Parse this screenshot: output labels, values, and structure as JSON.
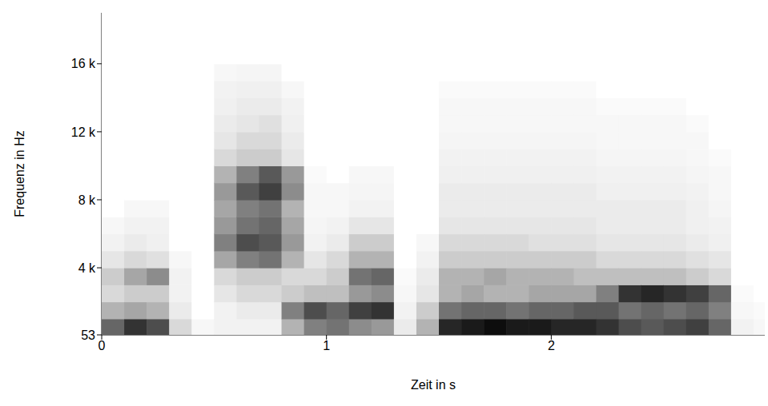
{
  "chart_data": {
    "type": "heatmap",
    "x_label": "Zeit in s",
    "y_label": "Frequenz in Hz",
    "color": "#000000",
    "x": [
      0.05,
      0.15,
      0.25,
      0.35,
      0.45,
      0.55,
      0.65,
      0.75,
      0.85,
      0.95,
      1.05,
      1.15,
      1.25,
      1.35,
      1.45,
      1.55,
      1.65,
      1.75,
      1.85,
      1.95,
      2.05,
      2.15,
      2.25,
      2.35,
      2.45,
      2.55,
      2.65,
      2.75,
      2.85,
      2.95
    ],
    "y": [
      500,
      1500,
      2500,
      3500,
      4500,
      5500,
      6500,
      7500,
      8500,
      9500,
      10500,
      11500,
      12500,
      13500,
      14500,
      15500,
      16500,
      17500,
      18500
    ],
    "z": [
      [
        0.6,
        0.3,
        0.15,
        0.2,
        0.1,
        0.05,
        0.03,
        0,
        0,
        0,
        0,
        0,
        0,
        0,
        0,
        0,
        0,
        0,
        0
      ],
      [
        0.8,
        0.35,
        0.2,
        0.35,
        0.15,
        0.08,
        0.05,
        0.03,
        0,
        0,
        0,
        0,
        0,
        0,
        0,
        0,
        0,
        0,
        0
      ],
      [
        0.7,
        0.3,
        0.2,
        0.45,
        0.12,
        0.06,
        0.05,
        0.03,
        0,
        0,
        0,
        0,
        0,
        0,
        0,
        0,
        0,
        0,
        0
      ],
      [
        0.15,
        0.08,
        0.05,
        0.05,
        0.03,
        0,
        0,
        0,
        0,
        0,
        0,
        0,
        0,
        0,
        0,
        0,
        0,
        0,
        0
      ],
      [
        0.03,
        0,
        0,
        0,
        0,
        0,
        0,
        0,
        0,
        0,
        0,
        0,
        0,
        0,
        0,
        0,
        0,
        0,
        0
      ],
      [
        0.05,
        0.05,
        0.1,
        0.15,
        0.35,
        0.5,
        0.4,
        0.35,
        0.4,
        0.3,
        0.15,
        0.1,
        0.08,
        0.06,
        0.05,
        0.03,
        0,
        0,
        0
      ],
      [
        0.05,
        0.08,
        0.15,
        0.2,
        0.5,
        0.7,
        0.55,
        0.5,
        0.65,
        0.5,
        0.2,
        0.15,
        0.1,
        0.08,
        0.06,
        0.04,
        0,
        0,
        0
      ],
      [
        0.05,
        0.08,
        0.15,
        0.2,
        0.55,
        0.65,
        0.6,
        0.55,
        0.75,
        0.65,
        0.2,
        0.15,
        0.12,
        0.08,
        0.06,
        0.04,
        0,
        0,
        0
      ],
      [
        0.3,
        0.5,
        0.2,
        0.15,
        0.3,
        0.4,
        0.35,
        0.3,
        0.45,
        0.4,
        0.1,
        0.08,
        0.06,
        0.05,
        0.03,
        0,
        0,
        0,
        0
      ],
      [
        0.5,
        0.7,
        0.25,
        0.15,
        0.1,
        0.05,
        0.04,
        0.03,
        0.03,
        0.02,
        0,
        0,
        0,
        0,
        0,
        0,
        0,
        0,
        0
      ],
      [
        0.55,
        0.6,
        0.25,
        0.2,
        0.15,
        0.08,
        0.05,
        0.03,
        0.03,
        0,
        0,
        0,
        0,
        0,
        0,
        0,
        0,
        0,
        0
      ],
      [
        0.45,
        0.75,
        0.4,
        0.55,
        0.3,
        0.2,
        0.1,
        0.05,
        0.04,
        0.03,
        0,
        0,
        0,
        0,
        0,
        0,
        0,
        0,
        0
      ],
      [
        0.4,
        0.8,
        0.45,
        0.6,
        0.3,
        0.2,
        0.1,
        0.05,
        0.04,
        0.03,
        0,
        0,
        0,
        0,
        0,
        0,
        0,
        0,
        0
      ],
      [
        0.08,
        0.05,
        0.03,
        0.02,
        0,
        0,
        0,
        0,
        0,
        0,
        0,
        0,
        0,
        0,
        0,
        0,
        0,
        0,
        0
      ],
      [
        0.3,
        0.2,
        0.1,
        0.08,
        0.05,
        0.03,
        0,
        0,
        0,
        0,
        0,
        0,
        0,
        0,
        0,
        0,
        0,
        0,
        0
      ],
      [
        0.85,
        0.55,
        0.3,
        0.3,
        0.2,
        0.15,
        0.1,
        0.08,
        0.08,
        0.06,
        0.05,
        0.04,
        0.03,
        0.03,
        0.02,
        0,
        0,
        0,
        0
      ],
      [
        0.9,
        0.6,
        0.35,
        0.3,
        0.2,
        0.15,
        0.1,
        0.08,
        0.08,
        0.06,
        0.05,
        0.04,
        0.03,
        0.03,
        0.02,
        0,
        0,
        0,
        0
      ],
      [
        0.95,
        0.6,
        0.3,
        0.35,
        0.2,
        0.15,
        0.1,
        0.08,
        0.08,
        0.06,
        0.05,
        0.04,
        0.03,
        0.03,
        0.02,
        0,
        0,
        0,
        0
      ],
      [
        0.9,
        0.55,
        0.3,
        0.3,
        0.2,
        0.15,
        0.1,
        0.08,
        0.08,
        0.06,
        0.05,
        0.04,
        0.03,
        0.03,
        0.02,
        0,
        0,
        0,
        0
      ],
      [
        0.9,
        0.6,
        0.35,
        0.3,
        0.2,
        0.12,
        0.1,
        0.08,
        0.08,
        0.06,
        0.05,
        0.04,
        0.03,
        0.03,
        0.02,
        0,
        0,
        0,
        0
      ],
      [
        0.85,
        0.6,
        0.35,
        0.3,
        0.2,
        0.12,
        0.1,
        0.08,
        0.08,
        0.06,
        0.05,
        0.04,
        0.03,
        0.03,
        0.02,
        0,
        0,
        0,
        0
      ],
      [
        0.85,
        0.65,
        0.35,
        0.25,
        0.2,
        0.12,
        0.1,
        0.08,
        0.08,
        0.06,
        0.05,
        0.04,
        0.03,
        0.03,
        0.02,
        0,
        0,
        0,
        0
      ],
      [
        0.8,
        0.65,
        0.5,
        0.25,
        0.15,
        0.1,
        0.08,
        0.08,
        0.06,
        0.05,
        0.04,
        0.03,
        0.03,
        0.02,
        0,
        0,
        0,
        0,
        0
      ],
      [
        0.7,
        0.55,
        0.8,
        0.25,
        0.15,
        0.1,
        0.08,
        0.08,
        0.06,
        0.05,
        0.04,
        0.03,
        0.03,
        0.02,
        0,
        0,
        0,
        0,
        0
      ],
      [
        0.65,
        0.6,
        0.85,
        0.25,
        0.15,
        0.1,
        0.08,
        0.08,
        0.06,
        0.05,
        0.04,
        0.03,
        0.03,
        0.02,
        0,
        0,
        0,
        0,
        0
      ],
      [
        0.7,
        0.55,
        0.8,
        0.25,
        0.15,
        0.1,
        0.08,
        0.08,
        0.06,
        0.05,
        0.04,
        0.03,
        0.03,
        0.02,
        0,
        0,
        0,
        0,
        0
      ],
      [
        0.75,
        0.6,
        0.75,
        0.2,
        0.12,
        0.08,
        0.06,
        0.06,
        0.05,
        0.04,
        0.03,
        0.03,
        0.02,
        0,
        0,
        0,
        0,
        0,
        0
      ],
      [
        0.6,
        0.5,
        0.6,
        0.15,
        0.1,
        0.06,
        0.05,
        0.04,
        0.03,
        0.03,
        0.02,
        0,
        0,
        0,
        0,
        0,
        0,
        0,
        0
      ],
      [
        0.05,
        0.03,
        0.02,
        0,
        0,
        0,
        0,
        0,
        0,
        0,
        0,
        0,
        0,
        0,
        0,
        0,
        0,
        0,
        0
      ],
      [
        0.03,
        0.02,
        0,
        0,
        0,
        0,
        0,
        0,
        0,
        0,
        0,
        0,
        0,
        0,
        0,
        0,
        0,
        0,
        0
      ]
    ],
    "xlim": [
      0,
      2.95
    ],
    "ylim": [
      53,
      19000
    ],
    "xticks": [
      0,
      1,
      2
    ],
    "yticks": [
      53,
      {
        "value": 4000,
        "label": "4 k"
      },
      {
        "value": 8000,
        "label": "8 k"
      },
      {
        "value": 12000,
        "label": "12 k"
      },
      {
        "value": 16000,
        "label": "16 k"
      }
    ]
  }
}
